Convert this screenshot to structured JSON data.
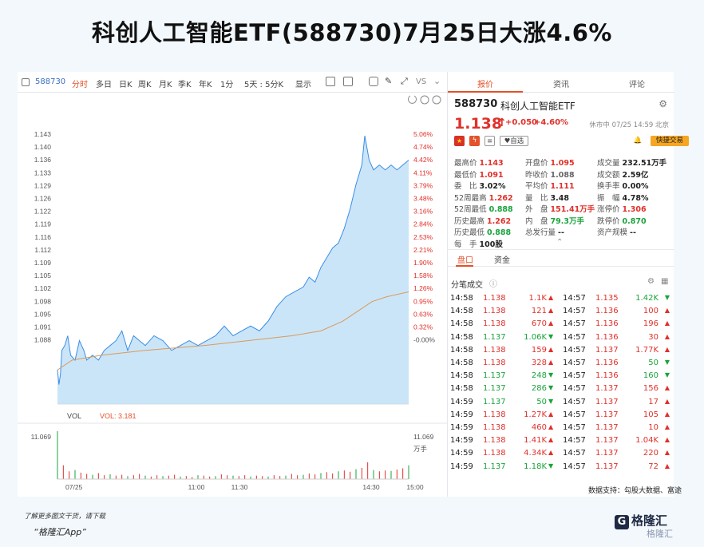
{
  "headline": "科创人工智能ETF(588730)7月25日大涨4.6%",
  "toolbar": {
    "code": "588730",
    "items": [
      "分时",
      "多日",
      "日K",
      "周K",
      "月K",
      "季K",
      "年K",
      "1分",
      "5天 : 5分K",
      "显示"
    ],
    "vs": "VS"
  },
  "right_tabs": [
    "报价",
    "资讯",
    "评论"
  ],
  "stock": {
    "code": "588730",
    "name": "科创人工智能ETF",
    "price": "1.138",
    "change": "+0.050",
    "change_pct": "+4.60%",
    "status": "休市中 07/25 14:59 北京",
    "auto_select": "自选",
    "fast_trade": "快捷交易"
  },
  "quote": [
    {
      "k": "最高价",
      "v": "1.143",
      "c": "red"
    },
    {
      "k": "开盘价",
      "v": "1.095",
      "c": "red"
    },
    {
      "k": "成交量",
      "v": "232.51万手",
      "c": "dark"
    },
    {
      "k": "最低价",
      "v": "1.091",
      "c": "red"
    },
    {
      "k": "昨收价",
      "v": "1.088",
      "c": "grey"
    },
    {
      "k": "成交额",
      "v": "2.59亿",
      "c": "dark"
    },
    {
      "k": "委　比",
      "v": "3.02%",
      "c": "dark"
    },
    {
      "k": "平均价",
      "v": "1.111",
      "c": "red"
    },
    {
      "k": "换手率",
      "v": "0.00%",
      "c": "dark"
    },
    {
      "k": "52周最高",
      "v": "1.262",
      "c": "red"
    },
    {
      "k": "量　比",
      "v": "3.48",
      "c": "dark"
    },
    {
      "k": "振　幅",
      "v": "4.78%",
      "c": "dark"
    },
    {
      "k": "52周最低",
      "v": "0.888",
      "c": "green"
    },
    {
      "k": "外　盘",
      "v": "151.41万手",
      "c": "red"
    },
    {
      "k": "涨停价",
      "v": "1.306",
      "c": "red"
    },
    {
      "k": "历史最高",
      "v": "1.262",
      "c": "red"
    },
    {
      "k": "内　盘",
      "v": "79.3万手",
      "c": "green"
    },
    {
      "k": "跌停价",
      "v": "0.870",
      "c": "green"
    },
    {
      "k": "历史最低",
      "v": "0.888",
      "c": "green"
    },
    {
      "k": "总发行量",
      "v": "--",
      "c": "dark"
    },
    {
      "k": "资产规模",
      "v": "--",
      "c": "dark"
    },
    {
      "k": "每　手",
      "v": "100股",
      "c": "dark"
    }
  ],
  "section_tabs": [
    "盘口",
    "资金"
  ],
  "trades_title": "分笔成交",
  "trades": [
    [
      "14:58",
      "1.138",
      "1.1K",
      "r",
      "14:57",
      "1.135",
      "1.42K",
      "g"
    ],
    [
      "14:58",
      "1.138",
      "121",
      "r",
      "14:57",
      "1.136",
      "100",
      "r"
    ],
    [
      "14:58",
      "1.138",
      "670",
      "r",
      "14:57",
      "1.136",
      "196",
      "r"
    ],
    [
      "14:58",
      "1.137",
      "1.06K",
      "g",
      "14:57",
      "1.136",
      "30",
      "r"
    ],
    [
      "14:58",
      "1.138",
      "159",
      "r",
      "14:57",
      "1.137",
      "1.77K",
      "r"
    ],
    [
      "14:58",
      "1.138",
      "328",
      "r",
      "14:57",
      "1.136",
      "50",
      "g"
    ],
    [
      "14:58",
      "1.137",
      "248",
      "g",
      "14:57",
      "1.136",
      "160",
      "g"
    ],
    [
      "14:58",
      "1.137",
      "286",
      "g",
      "14:57",
      "1.137",
      "156",
      "r"
    ],
    [
      "14:59",
      "1.137",
      "50",
      "g",
      "14:57",
      "1.137",
      "17",
      "r"
    ],
    [
      "14:59",
      "1.138",
      "1.27K",
      "r",
      "14:57",
      "1.137",
      "105",
      "r"
    ],
    [
      "14:59",
      "1.138",
      "460",
      "r",
      "14:57",
      "1.137",
      "10",
      "r"
    ],
    [
      "14:59",
      "1.138",
      "1.41K",
      "r",
      "14:57",
      "1.137",
      "1.04K",
      "r"
    ],
    [
      "14:59",
      "1.138",
      "4.34K",
      "r",
      "14:57",
      "1.137",
      "220",
      "r"
    ],
    [
      "14:59",
      "1.137",
      "1.18K",
      "g",
      "14:57",
      "1.137",
      "72",
      "r"
    ]
  ],
  "footer": {
    "source": "数据支持：勾股大数据、富途",
    "promo_line1": "了解更多图文干货，请下载",
    "promo_line2": "“格隆汇App”",
    "logo": "格隆汇",
    "watermark": "格隆汇"
  },
  "colors": {
    "up": "#e0302a",
    "down": "#1aa33b",
    "accent": "#e4512a",
    "line": "#3a8ee6",
    "avg": "#d89a5a"
  },
  "chart_data": {
    "type": "area",
    "prev_close": 1.088,
    "y_ticks": [
      "1.143",
      "1.140",
      "1.136",
      "1.133",
      "1.129",
      "1.126",
      "1.122",
      "1.119",
      "1.116",
      "1.112",
      "1.109",
      "1.105",
      "1.102",
      "1.098",
      "1.095",
      "1.091",
      "1.088"
    ],
    "pct_ticks": [
      "5.06%",
      "4.74%",
      "4.42%",
      "4.11%",
      "3.79%",
      "3.48%",
      "3.16%",
      "2.84%",
      "2.53%",
      "2.21%",
      "1.90%",
      "1.58%",
      "1.26%",
      "0.95%",
      "0.63%",
      "0.32%",
      "-0.00%"
    ],
    "ylim": [
      1.088,
      1.143
    ],
    "x_labels": [
      "07/25",
      "11:00",
      "11:30",
      "14:30",
      "15:00"
    ],
    "price_series": [
      [
        0,
        1.095
      ],
      [
        1,
        1.092
      ],
      [
        2,
        1.094
      ],
      [
        3,
        1.099
      ],
      [
        5,
        1.1
      ],
      [
        7,
        1.102
      ],
      [
        9,
        1.098
      ],
      [
        12,
        1.097
      ],
      [
        15,
        1.101
      ],
      [
        18,
        1.099
      ],
      [
        20,
        1.097
      ],
      [
        24,
        1.098
      ],
      [
        28,
        1.097
      ],
      [
        32,
        1.099
      ],
      [
        36,
        1.1
      ],
      [
        40,
        1.101
      ],
      [
        44,
        1.103
      ],
      [
        48,
        1.099
      ],
      [
        52,
        1.102
      ],
      [
        56,
        1.101
      ],
      [
        60,
        1.1
      ],
      [
        66,
        1.102
      ],
      [
        72,
        1.101
      ],
      [
        78,
        1.099
      ],
      [
        84,
        1.1
      ],
      [
        90,
        1.101
      ],
      [
        96,
        1.1
      ],
      [
        102,
        1.101
      ],
      [
        108,
        1.102
      ],
      [
        114,
        1.104
      ],
      [
        120,
        1.102
      ],
      [
        126,
        1.103
      ],
      [
        132,
        1.104
      ],
      [
        138,
        1.103
      ],
      [
        144,
        1.105
      ],
      [
        150,
        1.108
      ],
      [
        156,
        1.11
      ],
      [
        162,
        1.111
      ],
      [
        168,
        1.112
      ],
      [
        172,
        1.114
      ],
      [
        176,
        1.113
      ],
      [
        180,
        1.116
      ],
      [
        184,
        1.118
      ],
      [
        188,
        1.12
      ],
      [
        192,
        1.121
      ],
      [
        196,
        1.124
      ],
      [
        200,
        1.128
      ],
      [
        204,
        1.133
      ],
      [
        208,
        1.137
      ],
      [
        210,
        1.143
      ],
      [
        213,
        1.138
      ],
      [
        216,
        1.136
      ],
      [
        220,
        1.137
      ],
      [
        224,
        1.136
      ],
      [
        228,
        1.137
      ],
      [
        232,
        1.136
      ],
      [
        236,
        1.137
      ],
      [
        240,
        1.138
      ]
    ],
    "avg_series": [
      [
        0,
        1.095
      ],
      [
        10,
        1.097
      ],
      [
        30,
        1.098
      ],
      [
        60,
        1.099
      ],
      [
        100,
        1.1
      ],
      [
        130,
        1.101
      ],
      [
        160,
        1.102
      ],
      [
        180,
        1.103
      ],
      [
        195,
        1.105
      ],
      [
        205,
        1.107
      ],
      [
        215,
        1.109
      ],
      [
        225,
        1.11
      ],
      [
        240,
        1.111
      ]
    ],
    "x_max": 240,
    "volume": {
      "label": "VOL",
      "value_label": "VOL: 3.181",
      "max_label": "11.069",
      "unit": "万手",
      "bars": [
        11.069,
        3.2,
        1.8,
        2.1,
        1.5,
        1.2,
        1.0,
        1.4,
        0.9,
        1.1,
        0.8,
        1.0,
        0.7,
        0.9,
        1.2,
        0.8,
        0.6,
        0.9,
        0.7,
        0.8,
        1.0,
        0.6,
        0.7,
        0.5,
        0.9,
        0.8,
        0.6,
        0.7,
        1.1,
        0.9,
        0.8,
        0.7,
        0.9,
        0.6,
        0.8,
        0.7,
        0.6,
        0.9,
        0.7,
        0.8,
        1.2,
        0.9,
        1.0,
        1.3,
        1.1,
        1.4,
        1.6,
        1.3,
        1.8,
        2.0,
        1.7,
        2.3,
        2.6,
        3.9,
        2.1,
        1.8,
        2.0,
        1.9,
        2.2,
        2.5,
        3.181
      ]
    }
  }
}
